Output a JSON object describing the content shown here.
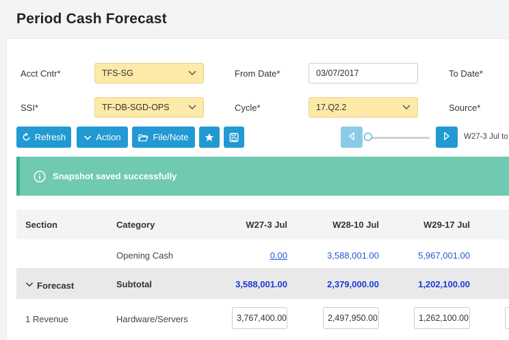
{
  "page": {
    "title": "Period Cash Forecast"
  },
  "filters": {
    "acct_cntr_label": "Acct Cntr*",
    "acct_cntr_value": "TFS-SG",
    "from_date_label": "From Date*",
    "from_date_value": "03/07/2017",
    "to_date_label": "To Date*",
    "ssi_label": "SSI*",
    "ssi_value": "TF-DB-SGD-OPS",
    "cycle_label": "Cycle*",
    "cycle_value": "17.Q2.2",
    "source_label": "Source*"
  },
  "toolbar": {
    "refresh_label": "Refresh",
    "action_label": "Action",
    "file_note_label": "File/Note",
    "week_range_text": "W27-3 Jul to",
    "slider_position": 0
  },
  "alert": {
    "message": "Snapshot saved successfully"
  },
  "table": {
    "headers": {
      "section": "Section",
      "category": "Category",
      "w1": "W27-3 Jul",
      "w2": "W28-10 Jul",
      "w3": "W29-17 Jul"
    },
    "opening": {
      "category": "Opening Cash",
      "w1": "0.00",
      "w2": "3,588,001.00",
      "w3": "5,967,001.00"
    },
    "forecast": {
      "section": "Forecast",
      "category": "Subtotal",
      "w1": "3,588,001.00",
      "w2": "2,379,000.00",
      "w3": "1,202,100.00"
    },
    "revenue": {
      "section": "1 Revenue",
      "category": "Hardware/Servers",
      "w1": "3,767,400.00",
      "w2": "2,497,950.00",
      "w3": "1,262,100.00"
    }
  },
  "colors": {
    "primary": "#2199d3",
    "highlight_select": "#fde9a8",
    "alert": "#70c9b1",
    "link": "#2457d6"
  }
}
